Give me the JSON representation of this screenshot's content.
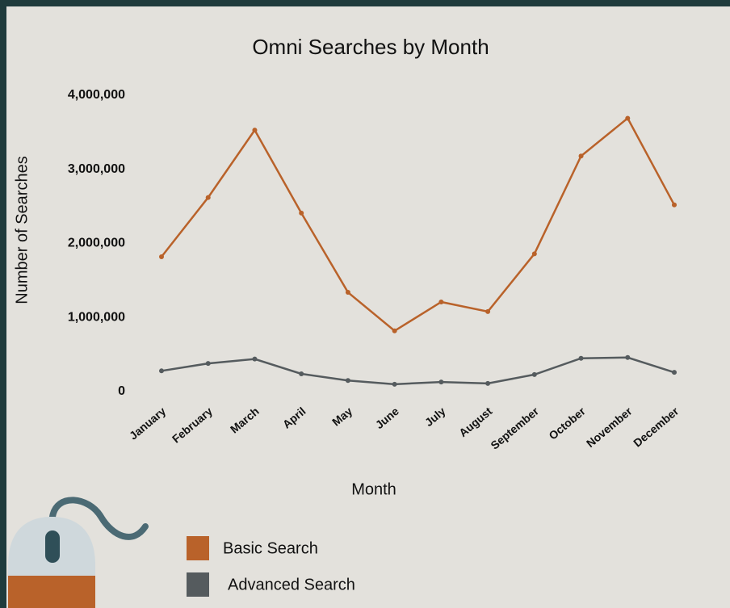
{
  "chart_data": {
    "type": "line",
    "title": "Omni Searches by Month",
    "x_label": "Month",
    "y_label": "Number of Searches",
    "categories": [
      "January",
      "February",
      "March",
      "April",
      "May",
      "June",
      "July",
      "August",
      "September",
      "October",
      "November",
      "December"
    ],
    "series": [
      {
        "name": "Basic Search",
        "color": "#b9622a",
        "values": [
          1820000,
          2620000,
          3530000,
          2410000,
          1340000,
          820000,
          1210000,
          1080000,
          1860000,
          3180000,
          3690000,
          2520000
        ]
      },
      {
        "name": "Advanced Search",
        "color": "#555b5e",
        "values": [
          280000,
          380000,
          440000,
          240000,
          150000,
          100000,
          130000,
          110000,
          230000,
          450000,
          460000,
          260000
        ]
      }
    ],
    "ylim": [
      0,
      4000000
    ],
    "yticks": [
      0,
      {
        "value": 1000000,
        "label": "1,000,000"
      },
      {
        "value": 2000000,
        "label": "2,000,000"
      },
      {
        "value": 3000000,
        "label": "3,000,000"
      },
      {
        "value": 4000000,
        "label": "4,000,000"
      }
    ],
    "grid": false
  }
}
